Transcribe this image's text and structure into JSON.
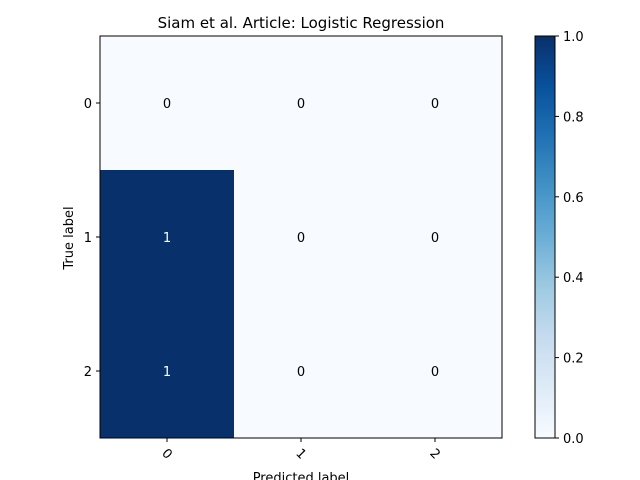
{
  "chart_data": {
    "type": "heatmap",
    "title": "Siam et al. Article: Logistic Regression",
    "xlabel": "Predicted label",
    "ylabel": "True label",
    "x_categories": [
      "0",
      "1",
      "2"
    ],
    "y_categories": [
      "0",
      "1",
      "2"
    ],
    "matrix": [
      [
        0,
        0,
        0
      ],
      [
        1,
        0,
        0
      ],
      [
        1,
        0,
        0
      ]
    ],
    "colormap": "Blues",
    "color_low": "#f7fbff",
    "color_high": "#08306b",
    "colorbar": {
      "min": 0.0,
      "max": 1.0,
      "ticks": [
        "0.0",
        "0.2",
        "0.4",
        "0.6",
        "0.8",
        "1.0"
      ]
    },
    "x_tick_rotation_deg": 45,
    "grid": false
  }
}
